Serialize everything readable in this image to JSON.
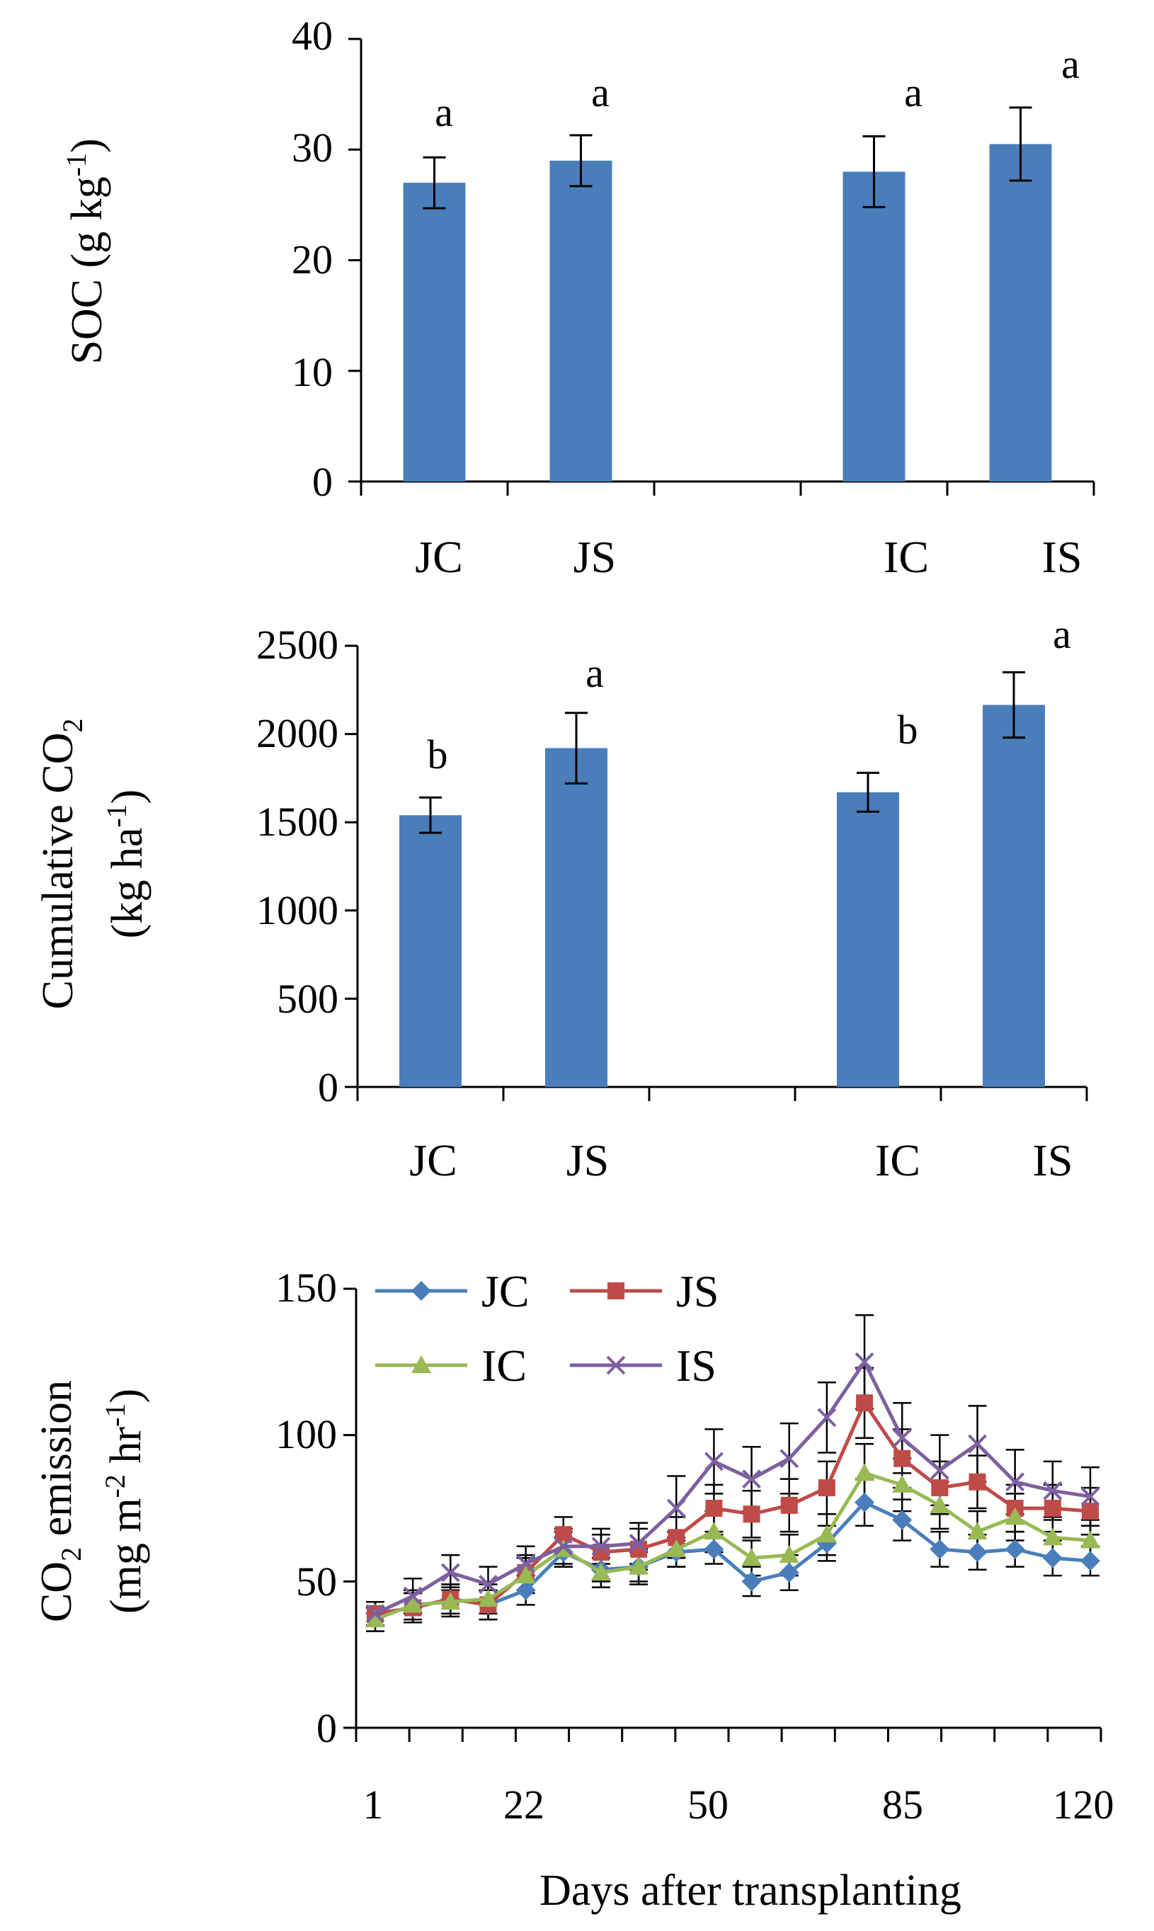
{
  "charts": [
    {
      "id": "soc",
      "type": "bar",
      "ylabel_main": "SOC (g kg",
      "ylabel_sup": "-1",
      "ylabel_end": ")",
      "categories": [
        "JC",
        "JS",
        "IC",
        "IS"
      ],
      "values": [
        27,
        29,
        28,
        30.5
      ],
      "errors": [
        2.3,
        2.3,
        3.2,
        3.3
      ],
      "letters": [
        "a",
        "a",
        "a",
        "a"
      ],
      "ylim": [
        0,
        40
      ],
      "yticks": [
        "0",
        "10",
        "20",
        "30",
        "40"
      ],
      "bar_color": "#4a7ebb"
    },
    {
      "id": "cumulative-co2",
      "type": "bar",
      "ylabel_line1": "Cumulative CO",
      "ylabel_line1_sub": "2",
      "ylabel_line2_main": "(kg ha",
      "ylabel_line2_sup": "-1",
      "ylabel_line2_end": ")",
      "categories": [
        "JC",
        "JS",
        "IC",
        "IS"
      ],
      "values": [
        1540,
        1920,
        1670,
        2165
      ],
      "errors": [
        100,
        200,
        110,
        185
      ],
      "letters": [
        "b",
        "a",
        "b",
        "a"
      ],
      "ylim": [
        0,
        2500
      ],
      "yticks": [
        "0",
        "500",
        "1000",
        "1500",
        "2000",
        "2500"
      ],
      "bar_color": "#4a7ebb"
    },
    {
      "id": "co2-emission",
      "type": "line",
      "ylabel_line1_main": "CO",
      "ylabel_line1_sub": "2",
      "ylabel_line1_end": " emission",
      "ylabel_line2_a": "(mg m",
      "ylabel_line2_sup1": "-2",
      "ylabel_line2_b": " hr",
      "ylabel_line2_sup2": "-1",
      "ylabel_line2_end": ")",
      "xlabel": "Days after transplanting",
      "xticks": [
        "1",
        "22",
        "50",
        "85",
        "120"
      ],
      "ylim": [
        0,
        150
      ],
      "yticks": [
        "0",
        "50",
        "100",
        "150"
      ],
      "series": [
        {
          "name": "JC",
          "color": "#4a7ebb",
          "marker": "diamond",
          "values": [
            39,
            41,
            44,
            42,
            47,
            60,
            54,
            55,
            60,
            61,
            50,
            53,
            63,
            77,
            71,
            61,
            60,
            61,
            58,
            57
          ],
          "errors": [
            4,
            5,
            5,
            5,
            5,
            5,
            4,
            5,
            5,
            5,
            5,
            6,
            6,
            8,
            7,
            6,
            6,
            6,
            6,
            5
          ]
        },
        {
          "name": "JS",
          "color": "#be4b48",
          "marker": "square",
          "values": [
            39,
            41,
            44,
            42,
            53,
            66,
            60,
            61,
            65,
            75,
            73,
            76,
            82,
            111,
            92,
            82,
            84,
            75,
            75,
            74
          ],
          "errors": [
            4,
            5,
            5,
            5,
            6,
            6,
            6,
            7,
            7,
            8,
            8,
            9,
            9,
            12,
            10,
            9,
            9,
            8,
            8,
            8
          ]
        },
        {
          "name": "IC",
          "color": "#98b954",
          "marker": "triangle",
          "values": [
            37,
            42,
            43,
            44,
            52,
            61,
            53,
            55,
            61,
            67,
            58,
            59,
            66,
            87,
            83,
            76,
            67,
            72,
            65,
            64
          ],
          "errors": [
            4,
            5,
            5,
            5,
            6,
            6,
            5,
            6,
            6,
            7,
            6,
            7,
            7,
            10,
            9,
            8,
            7,
            8,
            7,
            7
          ]
        },
        {
          "name": "IS",
          "color": "#7d60a0",
          "marker": "x",
          "values": [
            39,
            45,
            53,
            49,
            56,
            62,
            62,
            63,
            75,
            91,
            85,
            92,
            106,
            125,
            99,
            88,
            97,
            84,
            81,
            79
          ],
          "errors": [
            4,
            6,
            6,
            6,
            6,
            6,
            6,
            7,
            11,
            11,
            11,
            12,
            12,
            16,
            12,
            12,
            13,
            11,
            10,
            10
          ]
        }
      ]
    }
  ]
}
